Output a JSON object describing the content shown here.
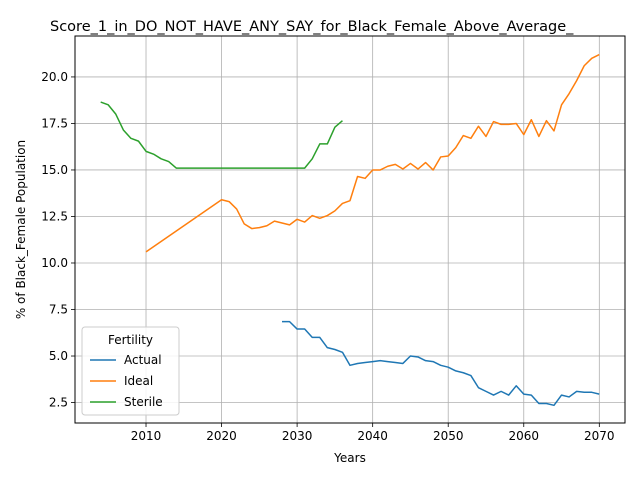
{
  "chart_data": {
    "type": "line",
    "title": "Score_1_in_DO_NOT_HAVE_ANY_SAY_for_Black_Female_Above_Average_",
    "xlabel": "Years",
    "ylabel": "% of Black_Female Population",
    "xlim": [
      2000.6,
      2073.4
    ],
    "ylim": [
      1.4,
      22.2
    ],
    "xticks": [
      2010,
      2020,
      2030,
      2040,
      2050,
      2060,
      2070
    ],
    "yticks": [
      2.5,
      5.0,
      7.5,
      10.0,
      12.5,
      15.0,
      17.5,
      20.0
    ],
    "ytick_labels": [
      "2.5",
      "5.0",
      "7.5",
      "10.0",
      "12.5",
      "15.0",
      "17.5",
      "20.0"
    ],
    "grid": true,
    "legend": {
      "title": "Fertility",
      "placement": "lower-left"
    },
    "series": [
      {
        "name": "Actual",
        "color": "#1f77b4",
        "x": [
          2028,
          2029,
          2030,
          2031,
          2032,
          2033,
          2034,
          2035,
          2036,
          2037,
          2038,
          2039,
          2040,
          2041,
          2042,
          2043,
          2044,
          2045,
          2046,
          2047,
          2048,
          2049,
          2050,
          2051,
          2052,
          2053,
          2054,
          2055,
          2056,
          2057,
          2058,
          2059,
          2060,
          2061,
          2062,
          2063,
          2064,
          2065,
          2066,
          2067,
          2068,
          2069,
          2070
        ],
        "values": [
          6.85,
          6.85,
          6.45,
          6.45,
          6.0,
          6.0,
          5.45,
          5.35,
          5.2,
          4.5,
          4.6,
          4.65,
          4.7,
          4.75,
          4.7,
          4.65,
          4.6,
          5.0,
          4.95,
          4.75,
          4.7,
          4.5,
          4.4,
          4.2,
          4.1,
          3.95,
          3.3,
          3.1,
          2.9,
          3.1,
          2.9,
          3.4,
          2.95,
          2.9,
          2.45,
          2.45,
          2.35,
          2.9,
          2.8,
          3.1,
          3.05,
          3.05,
          2.95
        ]
      },
      {
        "name": "Ideal",
        "color": "#ff7f0e",
        "x": [
          2010,
          2020,
          2021,
          2022,
          2023,
          2024,
          2025,
          2026,
          2027,
          2028,
          2029,
          2030,
          2031,
          2032,
          2033,
          2034,
          2035,
          2036,
          2037,
          2038,
          2039,
          2040,
          2041,
          2042,
          2043,
          2044,
          2045,
          2046,
          2047,
          2048,
          2049,
          2050,
          2051,
          2052,
          2053,
          2054,
          2055,
          2056,
          2057,
          2058,
          2059,
          2060,
          2061,
          2062,
          2063,
          2064,
          2065,
          2066,
          2067,
          2068,
          2069,
          2070
        ],
        "values": [
          10.6,
          13.4,
          13.3,
          12.9,
          12.1,
          11.85,
          11.9,
          12.0,
          12.25,
          12.15,
          12.05,
          12.35,
          12.2,
          12.55,
          12.4,
          12.55,
          12.8,
          13.2,
          13.35,
          14.65,
          14.55,
          15.0,
          15.0,
          15.2,
          15.3,
          15.05,
          15.35,
          15.05,
          15.4,
          15.0,
          15.7,
          15.75,
          16.2,
          16.85,
          16.7,
          17.35,
          16.8,
          17.6,
          17.45,
          17.45,
          17.5,
          16.9,
          17.7,
          16.8,
          17.65,
          17.1,
          18.5,
          19.1,
          19.8,
          20.6,
          21.0,
          21.2
        ]
      },
      {
        "name": "Sterile",
        "color": "#2ca02c",
        "x": [
          2004,
          2005,
          2006,
          2007,
          2008,
          2009,
          2010,
          2011,
          2012,
          2013,
          2014,
          2031,
          2032,
          2033,
          2034,
          2035,
          2036
        ],
        "values": [
          18.65,
          18.5,
          18.0,
          17.15,
          16.7,
          16.55,
          16.0,
          15.85,
          15.6,
          15.45,
          15.1,
          15.1,
          15.6,
          16.4,
          16.4,
          17.3,
          17.65
        ]
      }
    ]
  }
}
